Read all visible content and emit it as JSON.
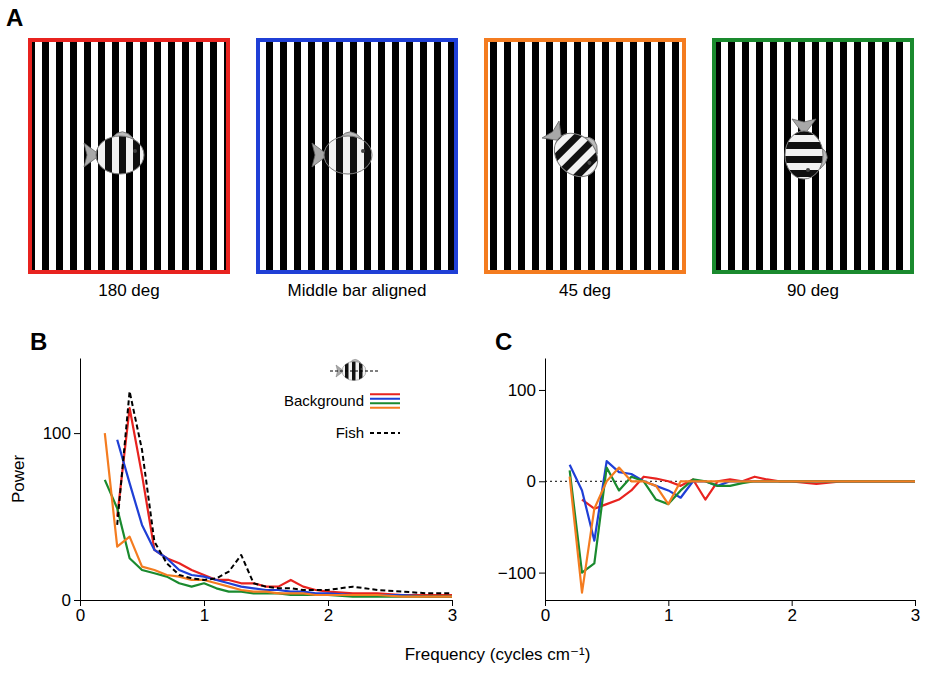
{
  "panel_a": {
    "label": "A",
    "images": [
      {
        "caption": "180 deg",
        "border_color": "#e8231f"
      },
      {
        "caption": "Middle bar aligned",
        "border_color": "#1f3fd6"
      },
      {
        "caption": "45 deg",
        "border_color": "#f47c20"
      },
      {
        "caption": "90 deg",
        "border_color": "#1a8a2e"
      }
    ]
  },
  "shared_xlabel": "Frequency (cycles cm⁻¹)",
  "chart_data": [
    {
      "type": "line",
      "label": "B",
      "ylabel": "Power",
      "legend": "top-right",
      "x": [
        0.2,
        0.3,
        0.4,
        0.5,
        0.6,
        0.7,
        0.8,
        0.9,
        1.0,
        1.1,
        1.2,
        1.3,
        1.4,
        1.5,
        1.6,
        1.7,
        1.8,
        1.9,
        2.0,
        2.2,
        2.4,
        2.6,
        2.8,
        3.0
      ],
      "xlim": [
        0,
        3
      ],
      "xticks": [
        0,
        1,
        2,
        3
      ],
      "ylim": [
        0,
        145
      ],
      "yticks": [
        0,
        100
      ],
      "series": [
        {
          "name": "Background",
          "color": "#e8231f",
          "line_style": "solid",
          "values": [
            null,
            50,
            115,
            75,
            30,
            25,
            22,
            18,
            15,
            12,
            12,
            10,
            10,
            8,
            8,
            12,
            8,
            6,
            5,
            4,
            4,
            3,
            3,
            3
          ]
        },
        {
          "name": "Background",
          "color": "#1f3fd6",
          "line_style": "solid",
          "values": [
            null,
            96,
            70,
            45,
            30,
            25,
            18,
            15,
            14,
            12,
            10,
            8,
            7,
            6,
            6,
            5,
            5,
            4,
            4,
            3,
            3,
            3,
            2,
            2
          ]
        },
        {
          "name": "Background",
          "color": "#1a8a2e",
          "line_style": "solid",
          "values": [
            72,
            55,
            25,
            18,
            16,
            14,
            10,
            8,
            10,
            7,
            5,
            5,
            4,
            4,
            4,
            3,
            3,
            3,
            3,
            2,
            2,
            2,
            2,
            2
          ]
        },
        {
          "name": "Background",
          "color": "#f47c20",
          "line_style": "solid",
          "values": [
            100,
            32,
            38,
            20,
            18,
            15,
            14,
            12,
            12,
            10,
            8,
            6,
            5,
            5,
            4,
            4,
            4,
            3,
            3,
            3,
            3,
            2,
            2,
            2
          ]
        },
        {
          "name": "Fish",
          "color": "#000000",
          "line_style": "dashed",
          "values": [
            null,
            45,
            125,
            90,
            35,
            22,
            15,
            13,
            12,
            13,
            17,
            27,
            10,
            8,
            7,
            7,
            6,
            6,
            6,
            8,
            6,
            5,
            4,
            4
          ]
        }
      ]
    },
    {
      "type": "line",
      "label": "C",
      "hline": 0,
      "x": [
        0.2,
        0.3,
        0.4,
        0.5,
        0.6,
        0.7,
        0.8,
        0.9,
        1.0,
        1.1,
        1.2,
        1.3,
        1.4,
        1.5,
        1.6,
        1.7,
        1.8,
        1.9,
        2.0,
        2.2,
        2.4,
        2.6,
        2.8,
        3.0
      ],
      "xlim": [
        0,
        3
      ],
      "xticks": [
        0,
        1,
        2,
        3
      ],
      "ylim": [
        -130,
        135
      ],
      "yticks": [
        {
          "value": -100,
          "label": "−100"
        },
        0,
        100
      ],
      "series": [
        {
          "color": "#e8231f",
          "line_style": "solid",
          "values": [
            null,
            -20,
            -30,
            -25,
            -20,
            -10,
            5,
            3,
            0,
            -5,
            2,
            -20,
            0,
            2,
            0,
            5,
            2,
            0,
            0,
            -3,
            0,
            0,
            0,
            0
          ]
        },
        {
          "color": "#1f3fd6",
          "line_style": "solid",
          "values": [
            18,
            -10,
            -65,
            22,
            10,
            8,
            0,
            -5,
            -10,
            -18,
            0,
            0,
            -5,
            0,
            0,
            0,
            0,
            0,
            0,
            0,
            0,
            0,
            0,
            0
          ]
        },
        {
          "color": "#1a8a2e",
          "line_style": "solid",
          "values": [
            12,
            -100,
            -90,
            15,
            -10,
            5,
            0,
            -20,
            -25,
            -10,
            2,
            0,
            -5,
            -5,
            -2,
            0,
            0,
            0,
            0,
            0,
            0,
            0,
            0,
            0
          ]
        },
        {
          "color": "#f47c20",
          "line_style": "solid",
          "values": [
            5,
            -122,
            -30,
            0,
            15,
            0,
            0,
            -5,
            -25,
            0,
            0,
            0,
            0,
            0,
            0,
            0,
            0,
            0,
            0,
            0,
            0,
            0,
            0,
            0
          ]
        }
      ]
    }
  ]
}
